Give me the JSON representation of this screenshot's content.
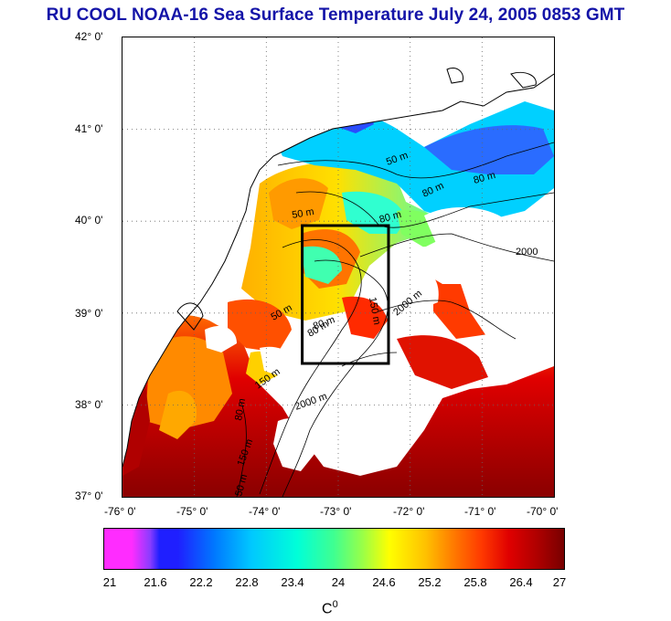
{
  "title": "RU COOL  NOAA-16 Sea Surface Temperature July 24, 2005 0853 GMT",
  "map": {
    "lat_labels": [
      "42° 0'",
      "41° 0'",
      "40° 0'",
      "39° 0'",
      "38° 0'",
      "37° 0'"
    ],
    "lon_labels": [
      "-76° 0'",
      "-75° 0'",
      "-74° 0'",
      "-73° 0'",
      "-72° 0'",
      "-71° 0'",
      "-70° 0'"
    ],
    "lat_range": [
      37,
      42
    ],
    "lon_range": [
      -76,
      -70
    ],
    "study_box": {
      "lon": [
        -73.5,
        -72.3
      ],
      "lat": [
        38.5,
        40.0
      ]
    },
    "contour_labels": [
      "50 m",
      "50 m",
      "80 m",
      "80 m",
      "50 m",
      "80 m",
      "150 m",
      "150 m",
      "2000",
      "2000 m",
      "2000 m",
      "150 m",
      "80 m",
      "50 m",
      "80 m",
      "80 m"
    ],
    "land_color": "#ffffff",
    "cloud_color": "#ffffff"
  },
  "colorbar": {
    "ticks": [
      "21",
      "21.6",
      "22.2",
      "22.8",
      "23.4",
      "24",
      "24.6",
      "25.2",
      "25.8",
      "26.4",
      "27"
    ],
    "unit_base": "C",
    "unit_sup": "0",
    "range": [
      21,
      27
    ],
    "colors": [
      "#ff2cff",
      "#1f1fff",
      "#00c8ff",
      "#00ffd8",
      "#96ff4a",
      "#ffff00",
      "#ffa000",
      "#ff3a00",
      "#c80000",
      "#780000"
    ]
  }
}
